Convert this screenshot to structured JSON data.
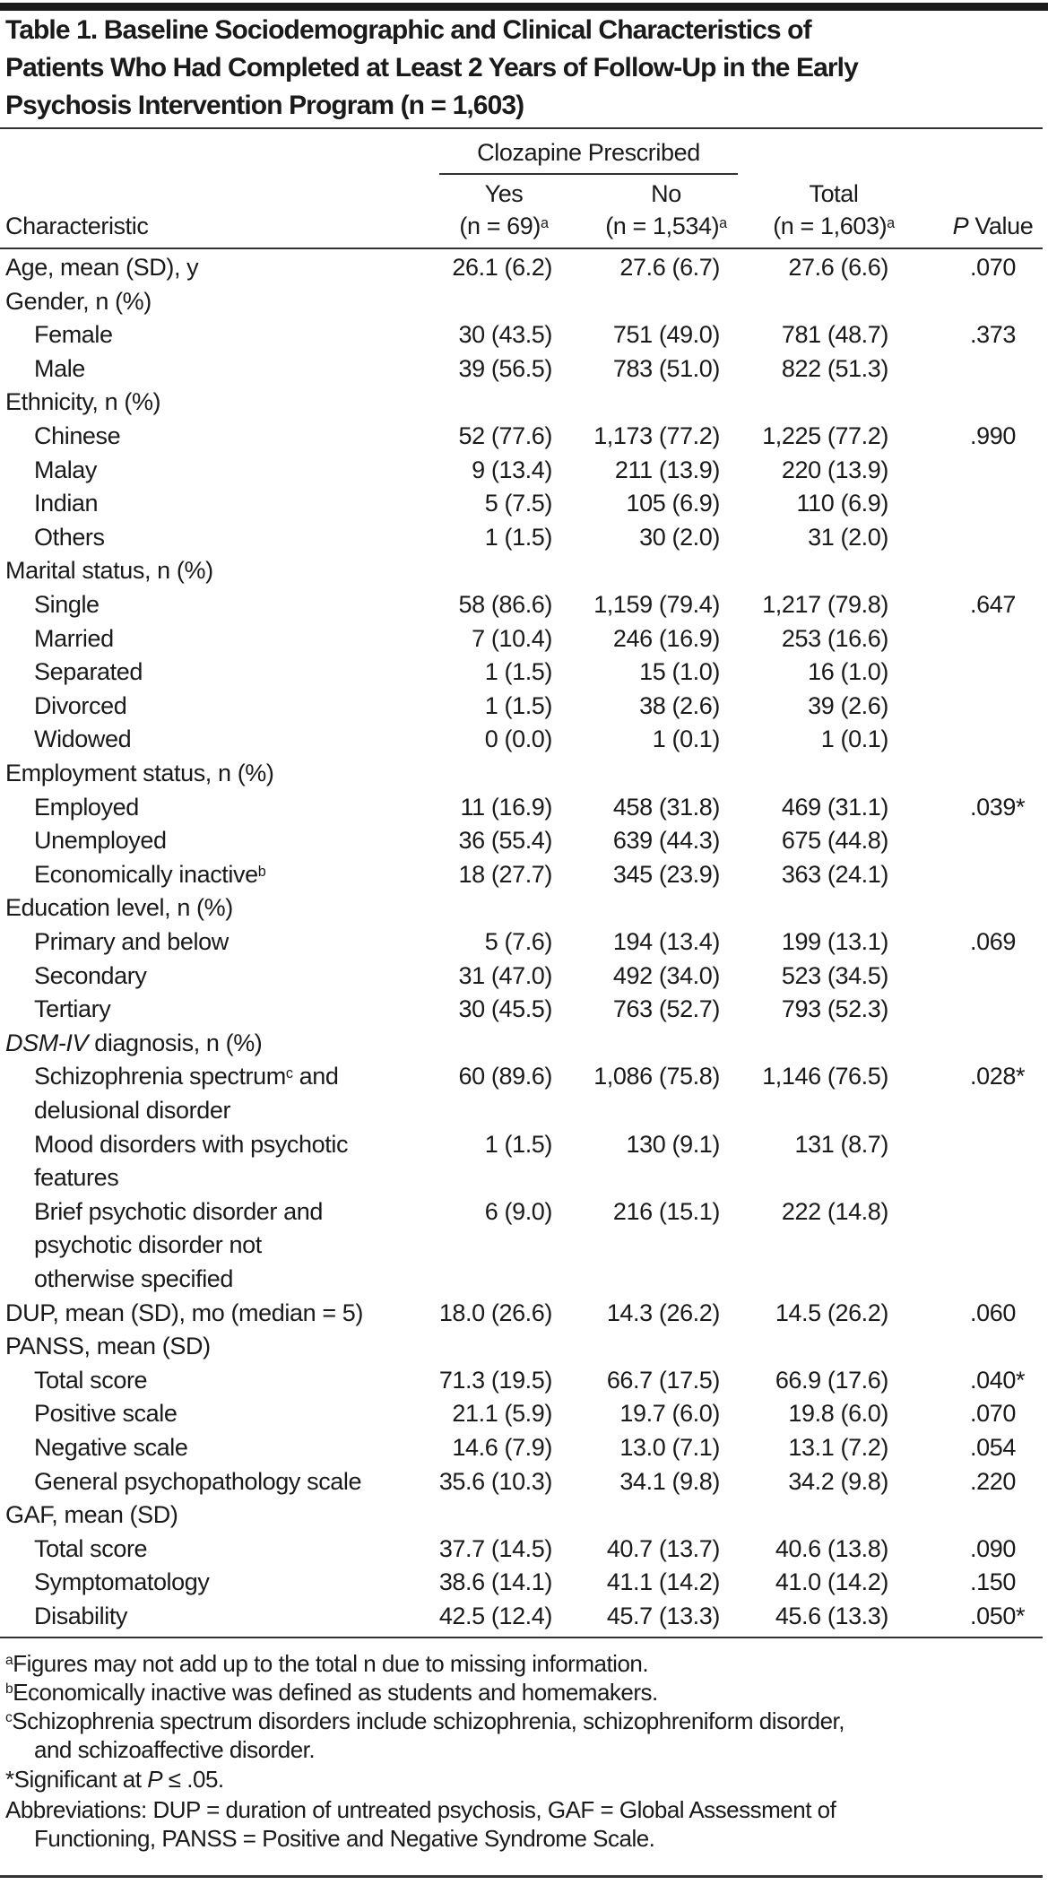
{
  "title_lines": [
    "Table 1. Baseline Sociodemographic and Clinical Characteristics of",
    "Patients Who Had Completed at Least 2 Years of Follow-Up in the Early",
    "Psychosis Intervention Program (n = 1,603)"
  ],
  "header": {
    "group": "Clozapine Prescribed",
    "characteristic": "Characteristic",
    "yes": "Yes",
    "yes_n": "(n = 69)",
    "yes_sup": "a",
    "no": "No",
    "no_n": "(n = 1,534)",
    "no_sup": "a",
    "total": "Total",
    "total_n": "(n = 1,603)",
    "total_sup": "a",
    "p_italic": "P",
    "p_rest": " Value"
  },
  "rows": [
    {
      "label": "Age, mean (SD), y",
      "yes": "26.1 (6.2)",
      "no": "27.6 (6.7)",
      "total": "27.6 (6.6)",
      "p": ".070"
    },
    {
      "label": "Gender, n (%)"
    },
    {
      "label": "Female",
      "indent": true,
      "yes": "30 (43.5)",
      "no": "751 (49.0)",
      "total": "781 (48.7)",
      "p": ".373"
    },
    {
      "label": "Male",
      "indent": true,
      "yes": "39 (56.5)",
      "no": "783 (51.0)",
      "total": "822 (51.3)"
    },
    {
      "label": "Ethnicity, n (%)"
    },
    {
      "label": "Chinese",
      "indent": true,
      "yes": "52 (77.6)",
      "no": "1,173 (77.2)",
      "total": "1,225 (77.2)",
      "p": ".990"
    },
    {
      "label": "Malay",
      "indent": true,
      "yes": "9 (13.4)",
      "no": "211 (13.9)",
      "total": "220 (13.9)"
    },
    {
      "label": "Indian",
      "indent": true,
      "yes": "5 (7.5)",
      "no": "105 (6.9)",
      "total": "110 (6.9)"
    },
    {
      "label": "Others",
      "indent": true,
      "yes": "1 (1.5)",
      "no": "30 (2.0)",
      "total": "31 (2.0)"
    },
    {
      "label": "Marital status, n (%)"
    },
    {
      "label": "Single",
      "indent": true,
      "yes": "58 (86.6)",
      "no": "1,159 (79.4)",
      "total": "1,217 (79.8)",
      "p": ".647"
    },
    {
      "label": "Married",
      "indent": true,
      "yes": "7 (10.4)",
      "no": "246 (16.9)",
      "total": "253 (16.6)"
    },
    {
      "label": "Separated",
      "indent": true,
      "yes": "1 (1.5)",
      "no": "15 (1.0)",
      "total": "16 (1.0)"
    },
    {
      "label": "Divorced",
      "indent": true,
      "yes": "1 (1.5)",
      "no": "38 (2.6)",
      "total": "39 (2.6)"
    },
    {
      "label": "Widowed",
      "indent": true,
      "yes": "0 (0.0)",
      "no": "1 (0.1)",
      "total": "1 (0.1)"
    },
    {
      "label": "Employment status, n (%)"
    },
    {
      "label": "Employed",
      "indent": true,
      "yes": "11 (16.9)",
      "no": "458 (31.8)",
      "total": "469 (31.1)",
      "p": ".039*"
    },
    {
      "label": "Unemployed",
      "indent": true,
      "yes": "36 (55.4)",
      "no": "639 (44.3)",
      "total": "675 (44.8)"
    },
    {
      "label": "Economically inactive",
      "sup": "b",
      "indent": true,
      "yes": "18 (27.7)",
      "no": "345 (23.9)",
      "total": "363 (24.1)"
    },
    {
      "label": "Education level, n (%)"
    },
    {
      "label": "Primary and below",
      "indent": true,
      "yes": "5 (7.6)",
      "no": "194 (13.4)",
      "total": "199 (13.1)",
      "p": ".069"
    },
    {
      "label": "Secondary",
      "indent": true,
      "yes": "31 (47.0)",
      "no": "492 (34.0)",
      "total": "523 (34.5)"
    },
    {
      "label": "Tertiary",
      "indent": true,
      "yes": "30 (45.5)",
      "no": "763 (52.7)",
      "total": "793 (52.3)"
    },
    {
      "label_italic": "DSM-IV",
      "label": " diagnosis, n (%)"
    },
    {
      "label": "Schizophrenia spectrum",
      "sup": "c",
      "after": " and",
      "indent": true,
      "yes": "60 (89.6)",
      "no": "1,086 (75.8)",
      "total": "1,146 (76.5)",
      "p": ".028*"
    },
    {
      "label": "delusional disorder",
      "indent": true
    },
    {
      "label": "Mood disorders with psychotic",
      "indent": true,
      "yes": "1 (1.5)",
      "no": "130 (9.1)",
      "total": "131 (8.7)"
    },
    {
      "label": "features",
      "indent": true
    },
    {
      "label": "Brief psychotic disorder and",
      "indent": true,
      "yes": "6 (9.0)",
      "no": "216 (15.1)",
      "total": "222 (14.8)"
    },
    {
      "label": "psychotic disorder not",
      "indent": true
    },
    {
      "label": "otherwise specified",
      "indent": true
    },
    {
      "label": "DUP, mean (SD), mo (median = 5)",
      "yes": "18.0 (26.6)",
      "no": "14.3 (26.2)",
      "total": "14.5 (26.2)",
      "p": ".060"
    },
    {
      "label": "PANSS, mean (SD)"
    },
    {
      "label": "Total score",
      "indent": true,
      "yes": "71.3 (19.5)",
      "no": "66.7 (17.5)",
      "total": "66.9 (17.6)",
      "p": ".040*"
    },
    {
      "label": "Positive scale",
      "indent": true,
      "yes": "21.1 (5.9)",
      "no": "19.7 (6.0)",
      "total": "19.8 (6.0)",
      "p": ".070"
    },
    {
      "label": "Negative scale",
      "indent": true,
      "yes": "14.6 (7.9)",
      "no": "13.0 (7.1)",
      "total": "13.1 (7.2)",
      "p": ".054"
    },
    {
      "label": "General psychopathology scale",
      "indent": true,
      "yes": "35.6 (10.3)",
      "no": "34.1 (9.8)",
      "total": "34.2 (9.8)",
      "p": ".220"
    },
    {
      "label": "GAF, mean (SD)"
    },
    {
      "label": "Total score",
      "indent": true,
      "yes": "37.7 (14.5)",
      "no": "40.7 (13.7)",
      "total": "40.6 (13.8)",
      "p": ".090"
    },
    {
      "label": "Symptomatology",
      "indent": true,
      "yes": "38.6 (14.1)",
      "no": "41.1 (14.2)",
      "total": "41.0 (14.2)",
      "p": ".150"
    },
    {
      "label": "Disability",
      "indent": true,
      "yes": "42.5 (12.4)",
      "no": "45.7 (13.3)",
      "total": "45.6 (13.3)",
      "p": ".050*"
    }
  ],
  "footnotes": {
    "a_sup": "a",
    "a": "Figures may not add up to the total n due to missing information.",
    "b_sup": "b",
    "b": "Economically inactive was defined as students and homemakers.",
    "c_sup": "c",
    "c_1": "Schizophrenia spectrum disorders include schizophrenia, schizophreniform disorder,",
    "c_2": "and schizoaffective disorder.",
    "sig_pre": "*Significant at ",
    "sig_italic": "P",
    "sig_post": " ≤ .05.",
    "abbr_1": "Abbreviations: DUP = duration of untreated psychosis, GAF = Global Assessment of",
    "abbr_2": "Functioning, PANSS = Positive and Negative Syndrome Scale."
  }
}
